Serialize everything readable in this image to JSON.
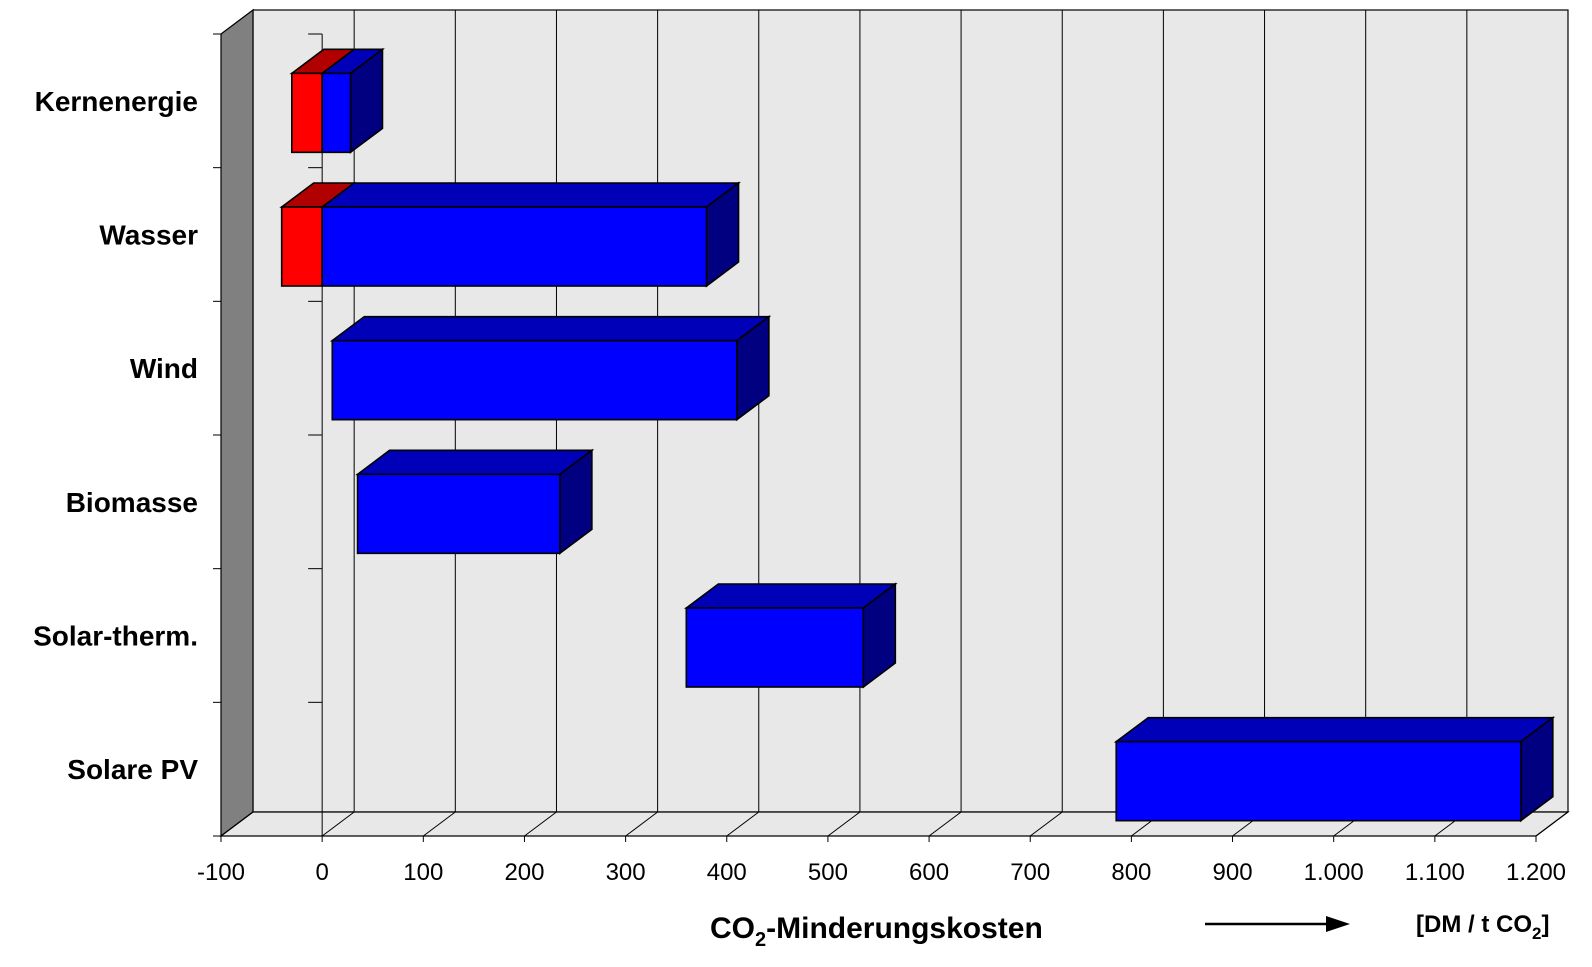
{
  "chart_data": {
    "type": "bar",
    "orientation": "horizontal-range-3d",
    "categories": [
      "Kernenergie",
      "Wasser",
      "Wind",
      "Biomasse",
      "Solar-therm.",
      "Solare PV"
    ],
    "series": [
      {
        "color": "#FF0000",
        "ranges": [
          [
            -30,
            0
          ],
          [
            -40,
            0
          ],
          null,
          null,
          null,
          null
        ]
      },
      {
        "color": "#0000FF",
        "ranges": [
          [
            0,
            28
          ],
          [
            0,
            380
          ],
          [
            10,
            410
          ],
          [
            35,
            235
          ],
          [
            360,
            535
          ],
          [
            785,
            1185
          ]
        ]
      }
    ],
    "xlim": [
      -100,
      1200
    ],
    "xticks": [
      -100,
      0,
      100,
      200,
      300,
      400,
      500,
      600,
      700,
      800,
      900,
      1000,
      1100,
      1200
    ],
    "xtick_labels": [
      "-100",
      "0",
      "100",
      "200",
      "300",
      "400",
      "500",
      "600",
      "700",
      "800",
      "900",
      "1.000",
      "1.100",
      "1.200"
    ],
    "xlabel_main": "CO",
    "xlabel_sub": "2",
    "xlabel_rest": "-Minderungskosten",
    "unit_main": "[DM / t CO",
    "unit_sub": "2",
    "unit_rest": "]",
    "grid": true,
    "colors": {
      "wall": "#E8E8E8",
      "side_wall": "#808080",
      "red_top": "#B00000",
      "blue_top": "#0000B8",
      "blue_side": "#000080"
    }
  }
}
